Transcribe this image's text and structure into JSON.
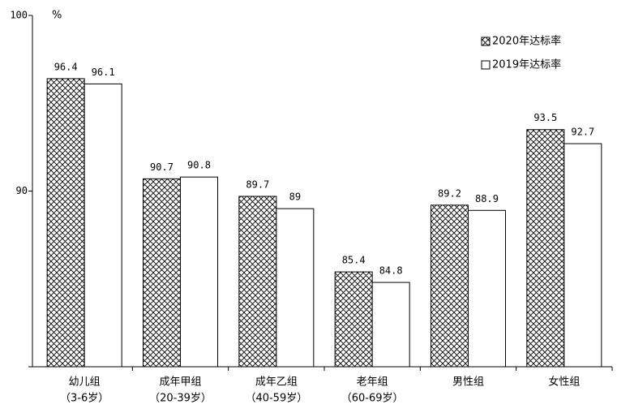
{
  "chart_data": {
    "type": "bar",
    "y_unit": "%",
    "categories": [
      "幼儿组",
      "成年甲组",
      "成年乙组",
      "老年组",
      "男性组",
      "女性组"
    ],
    "category_notes": [
      "（3-6岁）",
      "（20-39岁）",
      "（40-59岁）",
      "（60-69岁）",
      null,
      null
    ],
    "series": [
      {
        "name": "2020年达标率",
        "color": "#000000",
        "hatch": true,
        "values": [
          96.4,
          90.7,
          89.7,
          85.4,
          89.2,
          93.5
        ]
      },
      {
        "name": "2019年达标率",
        "color": "#000000",
        "hatch": false,
        "values": [
          96.1,
          90.8,
          89,
          84.8,
          88.9,
          92.7
        ]
      }
    ],
    "ylim": [
      80,
      100
    ],
    "yticks": [
      90,
      100
    ],
    "grid": false,
    "legend": "top-right"
  }
}
